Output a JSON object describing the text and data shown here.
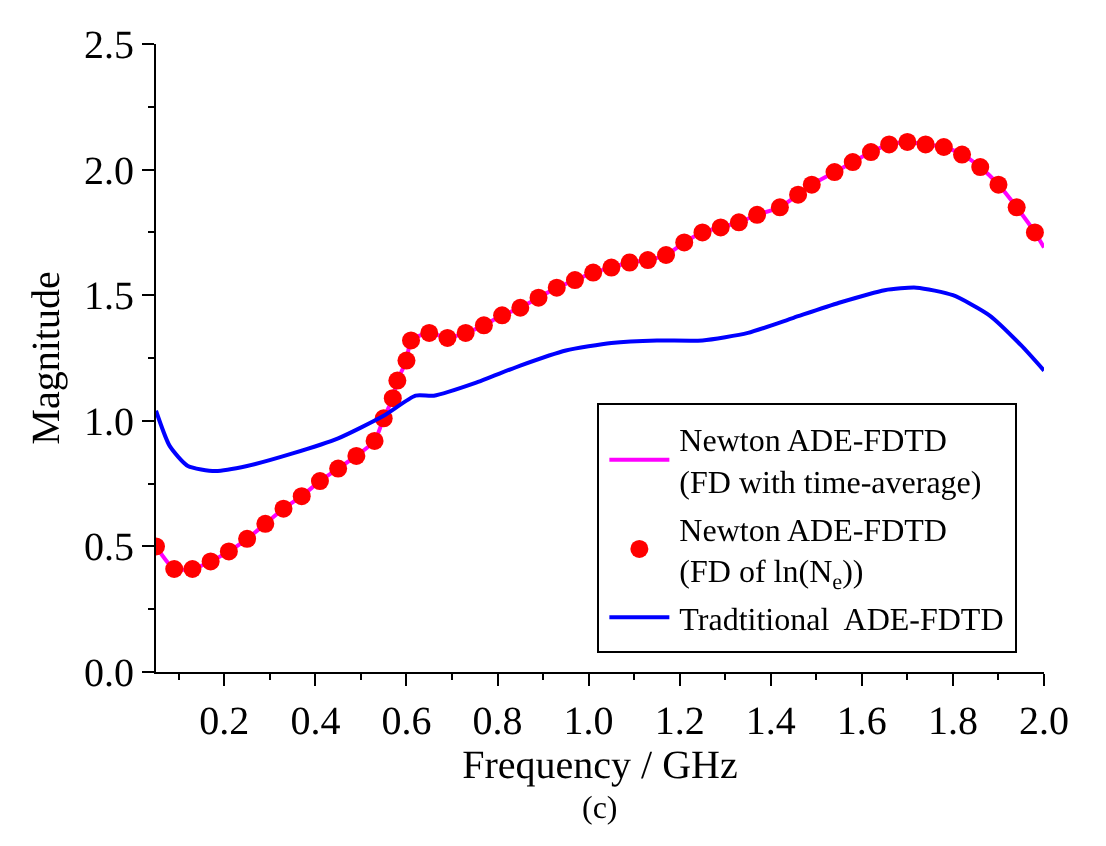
{
  "chart_data": {
    "type": "line",
    "xlabel": "Frequency / GHz",
    "ylabel": "Magnitude",
    "xlim": [
      0.05,
      2.0
    ],
    "ylim": [
      0,
      2.5
    ],
    "xticks": [
      {
        "value": 0.2,
        "label": "0.2"
      },
      {
        "value": 0.4,
        "label": "0.4"
      },
      {
        "value": 0.6,
        "label": "0.6"
      },
      {
        "value": 0.8,
        "label": "0.8"
      },
      {
        "value": 1.0,
        "label": "1.0"
      },
      {
        "value": 1.2,
        "label": "1.2"
      },
      {
        "value": 1.4,
        "label": "1.4"
      },
      {
        "value": 1.6,
        "label": "1.6"
      },
      {
        "value": 1.8,
        "label": "1.8"
      },
      {
        "value": 2.0,
        "label": "2.0"
      }
    ],
    "yticks": [
      {
        "value": 0,
        "label": "0.0"
      },
      {
        "value": 0.5,
        "label": "0.5"
      },
      {
        "value": 1.0,
        "label": "1.0"
      },
      {
        "value": 1.5,
        "label": "1.5"
      },
      {
        "value": 2.0,
        "label": "2.0"
      },
      {
        "value": 2.5,
        "label": "2.5"
      }
    ],
    "legend": "bottom right",
    "annotations": [
      "(c)"
    ],
    "series": [
      {
        "name": "Newton ADE-FDTD\n(FD with time-average)",
        "color": "#ff00ff",
        "line_style": "solid",
        "marker": "none",
        "x": [
          0.05,
          0.09,
          0.13,
          0.17,
          0.21,
          0.25,
          0.29,
          0.33,
          0.37,
          0.41,
          0.45,
          0.49,
          0.53,
          0.55,
          0.57,
          0.58,
          0.6,
          0.61,
          0.65,
          0.69,
          0.73,
          0.77,
          0.81,
          0.85,
          0.89,
          0.93,
          0.97,
          1.01,
          1.05,
          1.09,
          1.13,
          1.17,
          1.21,
          1.25,
          1.29,
          1.33,
          1.37,
          1.42,
          1.46,
          1.49,
          1.54,
          1.58,
          1.62,
          1.66,
          1.7,
          1.74,
          1.78,
          1.82,
          1.86,
          1.9,
          1.94,
          1.98,
          2.0
        ],
        "values": [
          0.5,
          0.41,
          0.41,
          0.44,
          0.48,
          0.53,
          0.59,
          0.65,
          0.7,
          0.76,
          0.81,
          0.86,
          0.92,
          1.01,
          1.09,
          1.16,
          1.24,
          1.32,
          1.35,
          1.33,
          1.35,
          1.38,
          1.42,
          1.45,
          1.49,
          1.53,
          1.56,
          1.59,
          1.61,
          1.63,
          1.64,
          1.66,
          1.71,
          1.75,
          1.77,
          1.79,
          1.82,
          1.85,
          1.9,
          1.94,
          1.99,
          2.03,
          2.07,
          2.1,
          2.11,
          2.1,
          2.09,
          2.06,
          2.01,
          1.94,
          1.85,
          1.75,
          1.69
        ]
      },
      {
        "name": "Newton ADE-FDTD\n(FD of ln(N$_{e}$))",
        "color": "#ff0000",
        "type": "scatter",
        "marker": "circle",
        "x": [
          0.05,
          0.09,
          0.13,
          0.17,
          0.21,
          0.25,
          0.29,
          0.33,
          0.37,
          0.41,
          0.45,
          0.49,
          0.53,
          0.55,
          0.57,
          0.58,
          0.6,
          0.61,
          0.65,
          0.69,
          0.73,
          0.77,
          0.81,
          0.85,
          0.89,
          0.93,
          0.97,
          1.01,
          1.05,
          1.09,
          1.13,
          1.17,
          1.21,
          1.25,
          1.29,
          1.33,
          1.37,
          1.42,
          1.46,
          1.49,
          1.54,
          1.58,
          1.62,
          1.66,
          1.7,
          1.74,
          1.78,
          1.82,
          1.86,
          1.9,
          1.94,
          1.98
        ],
        "values": [
          0.5,
          0.41,
          0.41,
          0.44,
          0.48,
          0.53,
          0.59,
          0.65,
          0.7,
          0.76,
          0.81,
          0.86,
          0.92,
          1.01,
          1.09,
          1.16,
          1.24,
          1.32,
          1.35,
          1.33,
          1.35,
          1.38,
          1.42,
          1.45,
          1.49,
          1.53,
          1.56,
          1.59,
          1.61,
          1.63,
          1.64,
          1.66,
          1.71,
          1.75,
          1.77,
          1.79,
          1.82,
          1.85,
          1.9,
          1.94,
          1.99,
          2.03,
          2.07,
          2.1,
          2.11,
          2.1,
          2.09,
          2.06,
          2.01,
          1.94,
          1.85,
          1.75
        ]
      },
      {
        "name": "Tradtitional  ADE-FDTD",
        "color": "#0000ff",
        "line_style": "solid",
        "marker": "none",
        "x": [
          0.05,
          0.08,
          0.12,
          0.18,
          0.25,
          0.35,
          0.45,
          0.55,
          0.62,
          0.66,
          0.75,
          0.85,
          0.95,
          1.05,
          1.15,
          1.25,
          1.35,
          1.45,
          1.55,
          1.65,
          1.72,
          1.8,
          1.88,
          1.95,
          2.0
        ],
        "values": [
          1.04,
          0.9,
          0.82,
          0.8,
          0.82,
          0.87,
          0.93,
          1.02,
          1.1,
          1.1,
          1.15,
          1.22,
          1.28,
          1.31,
          1.32,
          1.32,
          1.35,
          1.41,
          1.47,
          1.52,
          1.53,
          1.5,
          1.42,
          1.3,
          1.2
        ]
      }
    ]
  }
}
